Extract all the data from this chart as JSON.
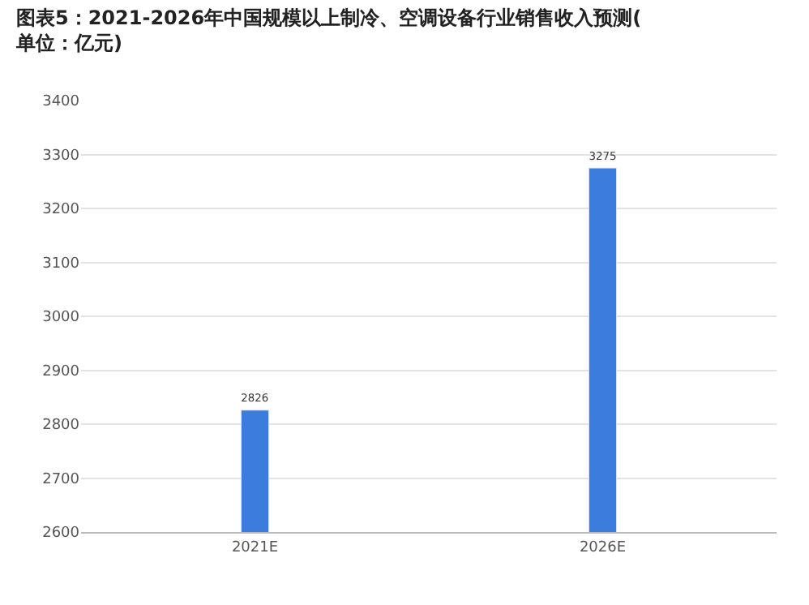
{
  "chart_data": {
    "type": "bar",
    "title": "图表5：2021-2026年中国规模以上制冷、空调设备行业销售收入预测(单位：亿元)",
    "categories": [
      "2021E",
      "2026E"
    ],
    "values": [
      2826,
      3275
    ],
    "color": "#3b7ddd",
    "ylim": [
      2600,
      3400
    ],
    "yticks": [
      2600,
      2700,
      2800,
      2900,
      3000,
      3100,
      3200,
      3300,
      3400
    ],
    "grid": "y",
    "data_labels": true
  }
}
